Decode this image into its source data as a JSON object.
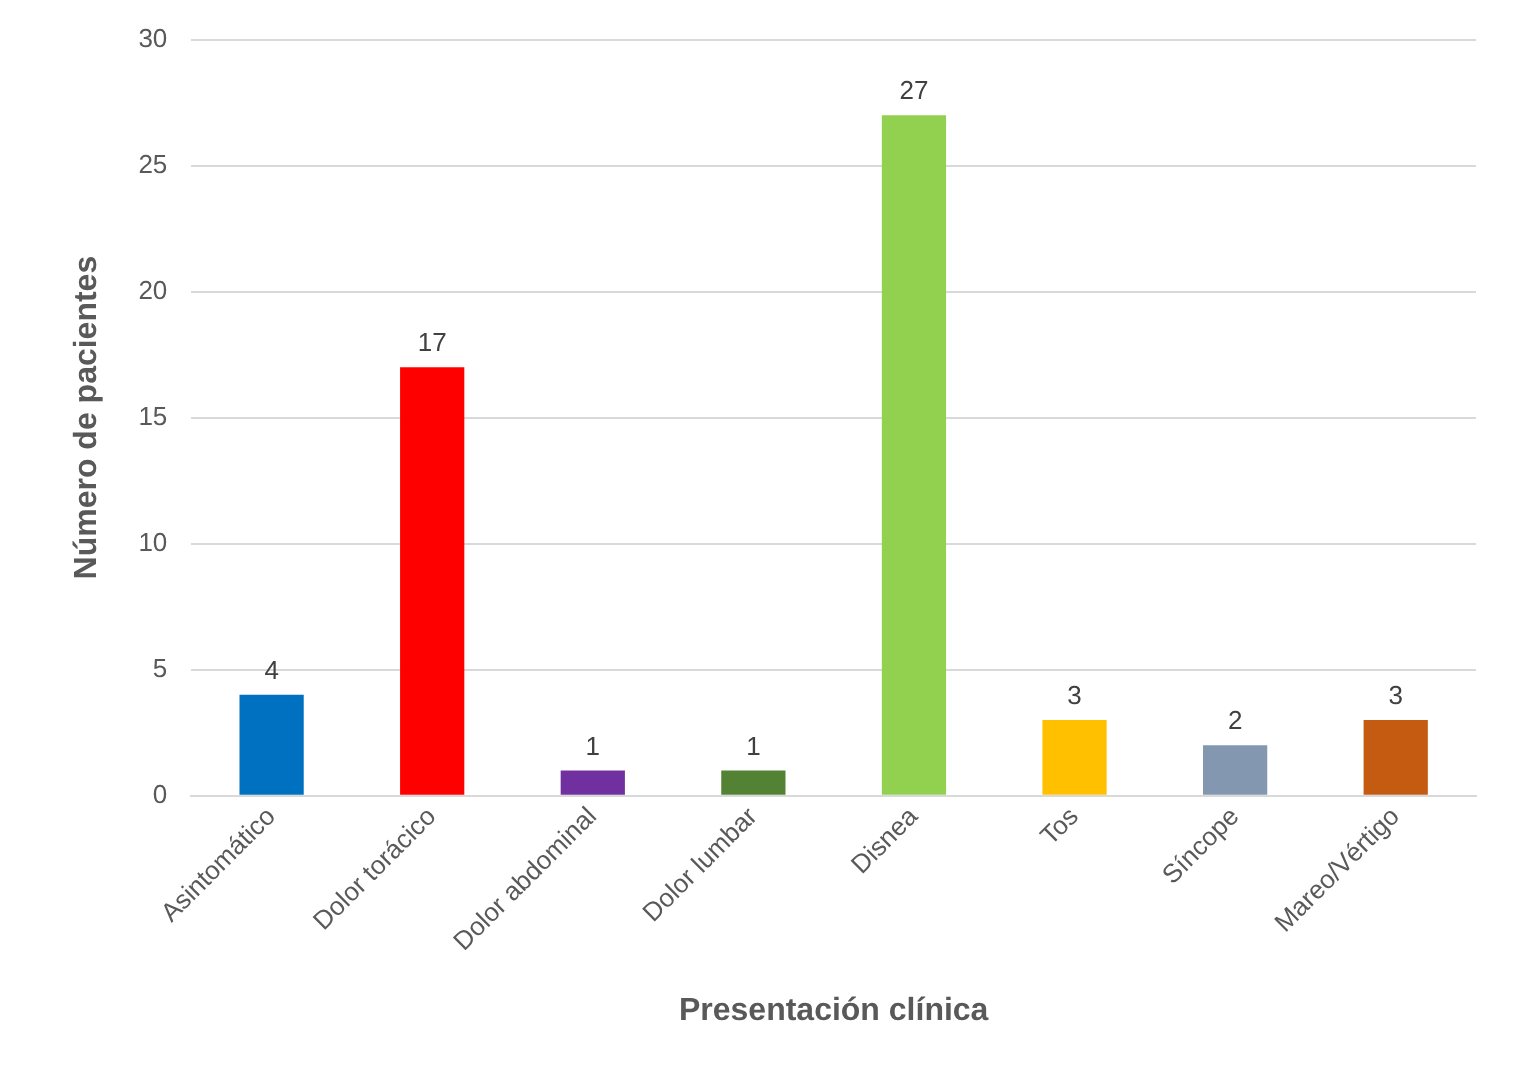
{
  "chart_data": {
    "type": "bar",
    "xlabel": "Presentación clínica",
    "ylabel": "Número de pacientes",
    "categories": [
      "Asintomático",
      "Dolor torácico",
      "Dolor abdominal",
      "Dolor lumbar",
      "Disnea",
      "Tos",
      "Síncope",
      "Mareo/Vértigo"
    ],
    "values": [
      4,
      17,
      1,
      1,
      27,
      3,
      2,
      3
    ],
    "colors": [
      "#0070c0",
      "#ff0000",
      "#7030a0",
      "#548235",
      "#92d050",
      "#ffc000",
      "#8497b0",
      "#c55a11"
    ],
    "ylim": [
      0,
      30
    ],
    "yticks": [
      0,
      5,
      10,
      15,
      20,
      25,
      30
    ],
    "grid": "y",
    "data_labels": true,
    "legend": false
  }
}
